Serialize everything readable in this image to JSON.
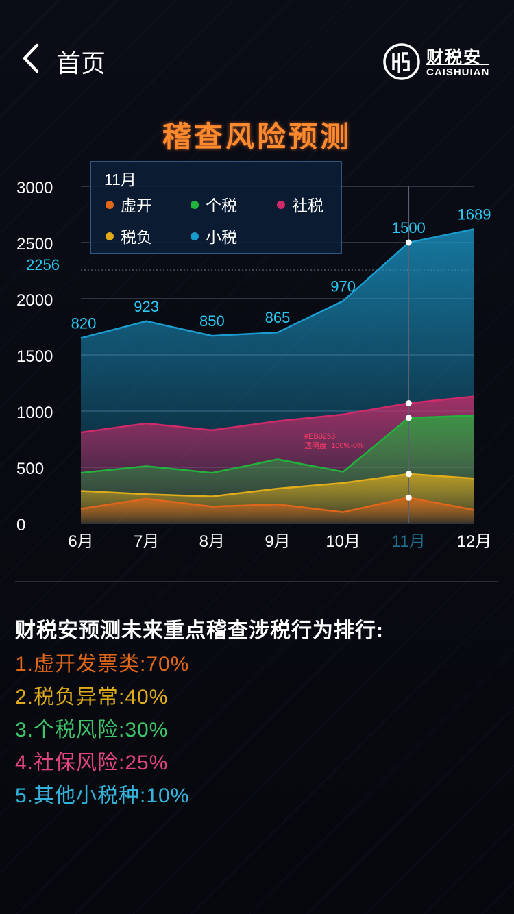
{
  "nav": {
    "back_label": "首页"
  },
  "brand": {
    "name_cn": "财税安",
    "name_en": "CAISHUIAN"
  },
  "chart_title": "稽查风险预测",
  "tooltip": {
    "month": "11月",
    "items": [
      {
        "label": "虚开",
        "color": "#e0661a"
      },
      {
        "label": "个税",
        "color": "#21b33c"
      },
      {
        "label": "社税",
        "color": "#d02a6a"
      },
      {
        "label": "税负",
        "color": "#e0ac1a"
      },
      {
        "label": "小税",
        "color": "#1b9ccf"
      }
    ]
  },
  "annotation": {
    "line1": "#EB0253",
    "line2": "透明度: 100%-0%"
  },
  "chart_data": {
    "type": "area",
    "categories": [
      "6月",
      "7月",
      "8月",
      "9月",
      "10月",
      "11月",
      "12月"
    ],
    "highlight_category": "11月",
    "ylim": [
      0,
      3000
    ],
    "yticks": [
      0,
      500,
      1000,
      1500,
      2000,
      2500,
      3000
    ],
    "reference_line": {
      "value": 2256,
      "label": "2256"
    },
    "series": [
      {
        "name": "小税",
        "color": "#1b9ccf",
        "values": [
          1650,
          1800,
          1670,
          1700,
          1980,
          2500,
          2620
        ],
        "labels": [
          "820",
          "923",
          "850",
          "865",
          "970",
          "1500",
          "1689"
        ]
      },
      {
        "name": "社税",
        "color": "#d02a6a",
        "values": [
          810,
          890,
          830,
          910,
          970,
          1070,
          1130
        ]
      },
      {
        "name": "个税",
        "color": "#21b33c",
        "values": [
          450,
          510,
          450,
          570,
          460,
          940,
          960
        ]
      },
      {
        "name": "税负",
        "color": "#e0ac1a",
        "values": [
          290,
          260,
          240,
          310,
          360,
          440,
          400
        ]
      },
      {
        "name": "虚开",
        "color": "#e0661a",
        "values": [
          130,
          220,
          150,
          170,
          100,
          230,
          120
        ]
      }
    ]
  },
  "ranking": {
    "heading": "财税安预测未来重点稽查涉税行为排行:",
    "items": [
      {
        "text": "1.虚开发票类:70%",
        "color": "#e0661a"
      },
      {
        "text": "2.税负异常:40%",
        "color": "#e0ac1a"
      },
      {
        "text": "3.个税风险:30%",
        "color": "#3cc56a"
      },
      {
        "text": "4.社保风险:25%",
        "color": "#e0457e"
      },
      {
        "text": "5.其他小税种:10%",
        "color": "#33b3dc"
      }
    ]
  }
}
